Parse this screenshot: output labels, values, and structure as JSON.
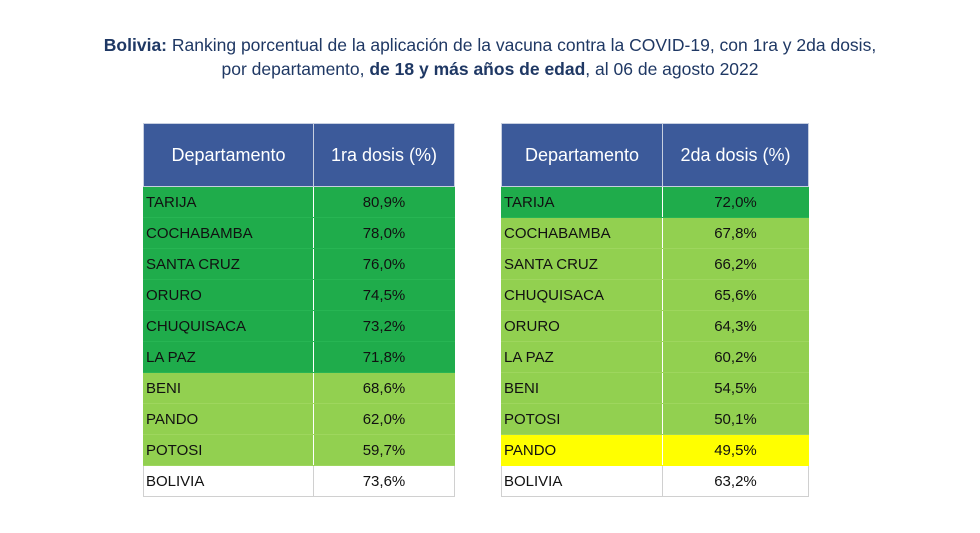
{
  "title": {
    "bold_lead": "Bolivia:",
    "line1_rest": " Ranking porcentual de la aplicación de la vacuna contra la COVID-19, con 1ra y 2da dosis,",
    "line2_pre": "por departamento, ",
    "line2_bold": "de 18 y más años de edad",
    "line2_post": ", al 06 de agosto 2022"
  },
  "table_first": {
    "headers": [
      "Departamento",
      "1ra dosis (%)"
    ],
    "rows": [
      {
        "dep": "TARIJA",
        "val": "80,9%",
        "band": "dark"
      },
      {
        "dep": "COCHABAMBA",
        "val": "78,0%",
        "band": "dark"
      },
      {
        "dep": "SANTA CRUZ",
        "val": "76,0%",
        "band": "dark"
      },
      {
        "dep": "ORURO",
        "val": "74,5%",
        "band": "dark"
      },
      {
        "dep": "CHUQUISACA",
        "val": "73,2%",
        "band": "dark"
      },
      {
        "dep": "LA PAZ",
        "val": "71,8%",
        "band": "dark"
      },
      {
        "dep": "BENI",
        "val": "68,6%",
        "band": "light"
      },
      {
        "dep": "PANDO",
        "val": "62,0%",
        "band": "light"
      },
      {
        "dep": "POTOSI",
        "val": "59,7%",
        "band": "light"
      },
      {
        "dep": "BOLIVIA",
        "val": "73,6%",
        "band": "total"
      }
    ]
  },
  "table_second": {
    "headers": [
      "Departamento",
      "2da dosis (%)"
    ],
    "rows": [
      {
        "dep": "TARIJA",
        "val": "72,0%",
        "band": "dark"
      },
      {
        "dep": "COCHABAMBA",
        "val": "67,8%",
        "band": "light"
      },
      {
        "dep": "SANTA CRUZ",
        "val": "66,2%",
        "band": "light"
      },
      {
        "dep": "CHUQUISACA",
        "val": "65,6%",
        "band": "light"
      },
      {
        "dep": "ORURO",
        "val": "64,3%",
        "band": "light"
      },
      {
        "dep": "LA PAZ",
        "val": "60,2%",
        "band": "light"
      },
      {
        "dep": "BENI",
        "val": "54,5%",
        "band": "light"
      },
      {
        "dep": "POTOSI",
        "val": "50,1%",
        "band": "light"
      },
      {
        "dep": "PANDO",
        "val": "49,5%",
        "band": "yellow"
      },
      {
        "dep": "BOLIVIA",
        "val": "63,2%",
        "band": "total"
      }
    ]
  },
  "colors": {
    "header": "#3c5a9a",
    "dark_green": "#1fac4b",
    "light_green": "#92d050",
    "yellow": "#ffff00",
    "title": "#1f3864"
  }
}
